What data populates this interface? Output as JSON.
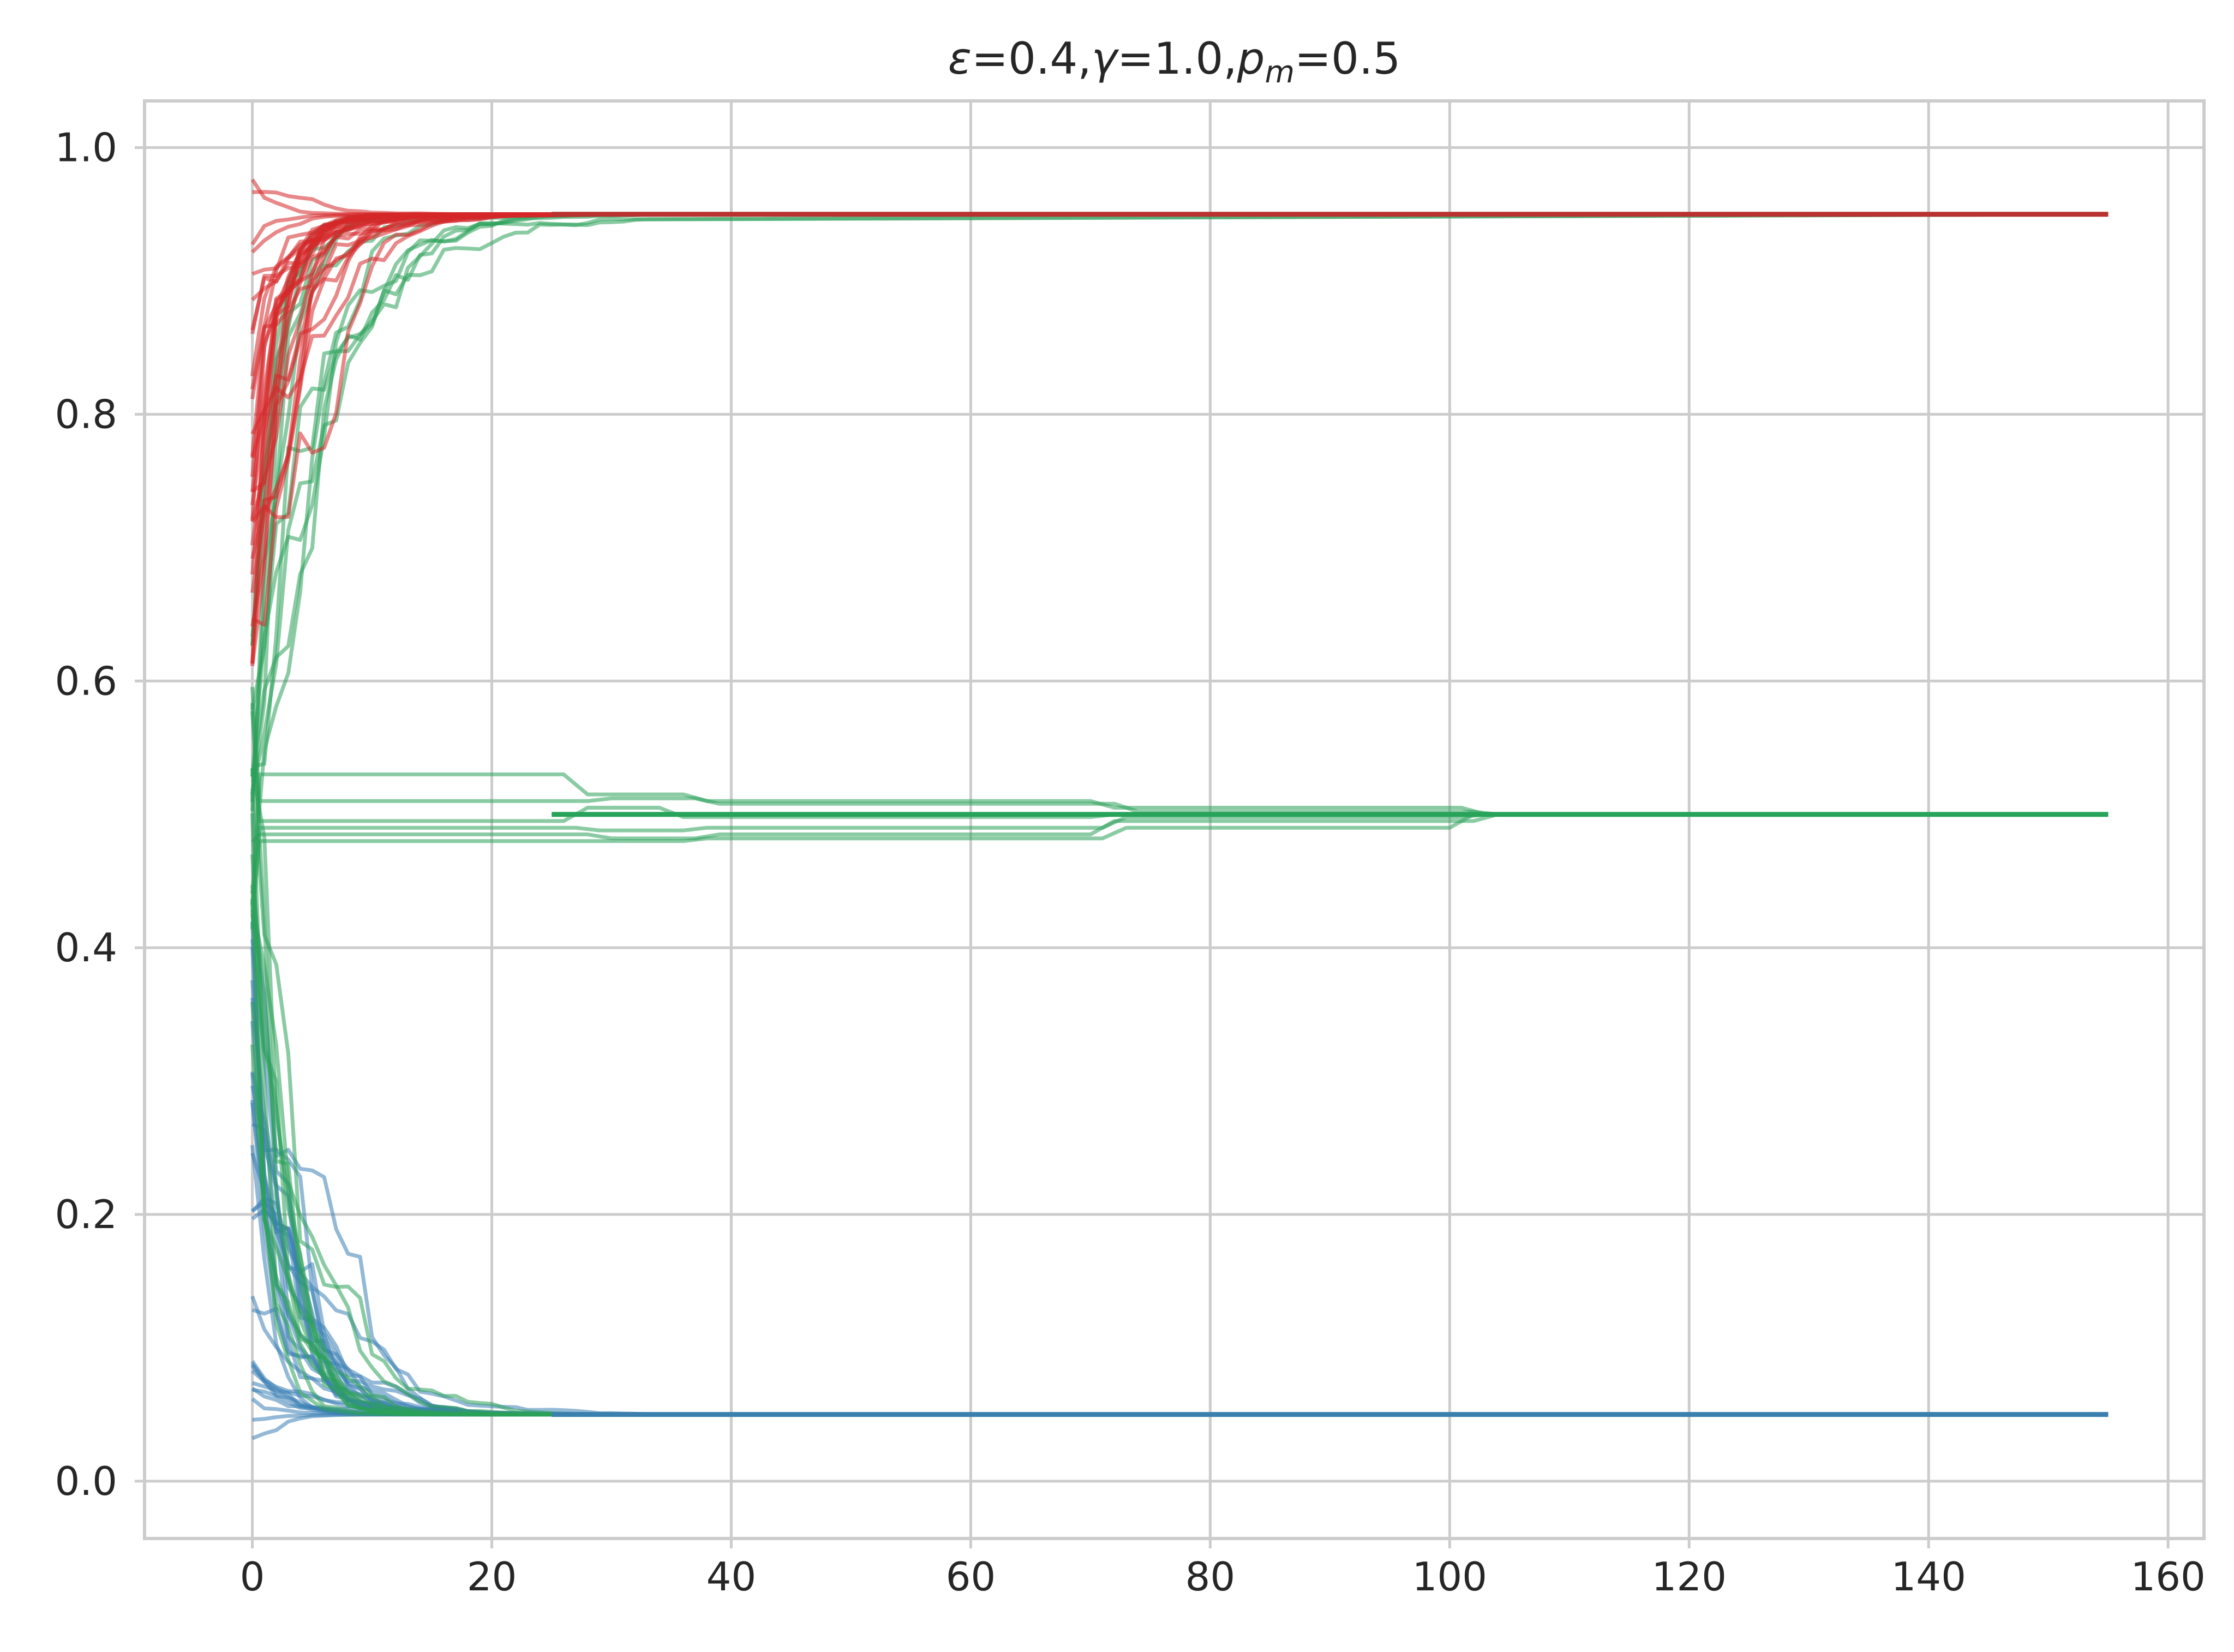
{
  "chart_data": {
    "type": "line",
    "title": "ε=0.4,γ=1.0,p_m=0.5",
    "title_parts": {
      "eps": "ε",
      "eps_val": "=0.4,",
      "gamma": "γ",
      "gamma_val": "=1.0,",
      "p": "p",
      "p_sub": "m",
      "p_val": "=0.5"
    },
    "xlabel": "",
    "ylabel": "",
    "xlim": [
      -9,
      163
    ],
    "ylim": [
      -0.043,
      1.035
    ],
    "x_ticks": [
      0,
      20,
      40,
      60,
      80,
      100,
      120,
      140,
      160
    ],
    "y_ticks": [
      0.0,
      0.2,
      0.4,
      0.6,
      0.8,
      1.0
    ],
    "x_tick_labels": [
      "0",
      "20",
      "40",
      "60",
      "80",
      "100",
      "120",
      "140",
      "160"
    ],
    "y_tick_labels": [
      "0.0",
      "0.2",
      "0.4",
      "0.6",
      "0.8",
      "1.0"
    ],
    "grid": true,
    "legend": "none",
    "colors": {
      "red": "#d62728",
      "green": "#2ca05a",
      "blue": "#3b7fb5",
      "grid": "#cccccc"
    },
    "x_end": 155,
    "series": [
      {
        "group": "red",
        "color": "#d62728",
        "count": 30,
        "final_value": 0.95,
        "start_range": [
          0.6,
          0.985
        ],
        "converged_by": 25
      },
      {
        "group": "blue",
        "color": "#3b7fb5",
        "count": 30,
        "final_value": 0.05,
        "start_range": [
          0.005,
          0.45
        ],
        "converged_by": 25
      },
      {
        "group": "green-upper",
        "color": "#2ca05a",
        "count": 12,
        "final_value": 0.95,
        "start_range": [
          0.4,
          0.65
        ],
        "converged_by": 25
      },
      {
        "group": "green-lower",
        "color": "#2ca05a",
        "count": 12,
        "final_value": 0.05,
        "start_range": [
          0.3,
          0.6
        ],
        "converged_by": 25
      },
      {
        "group": "green-middle",
        "color": "#2ca05a",
        "count": 6,
        "final_value": 0.5,
        "plateaus": [
          {
            "values": [
              0.53,
              0.515,
              0.51,
              0.505,
              0.5
            ],
            "switch_x": [
              26,
              36,
              70,
              101
            ]
          },
          {
            "values": [
              0.51,
              0.512,
              0.508,
              0.502,
              0.5
            ],
            "switch_x": [
              28,
              37,
              72,
              102
            ]
          },
          {
            "values": [
              0.495,
              0.505,
              0.498,
              0.5,
              0.5
            ],
            "switch_x": [
              26,
              34,
              70,
              100
            ]
          },
          {
            "values": [
              0.49,
              0.488,
              0.49,
              0.498,
              0.5
            ],
            "switch_x": [
              27,
              36,
              71,
              101
            ]
          },
          {
            "values": [
              0.485,
              0.482,
              0.485,
              0.495,
              0.5
            ],
            "switch_x": [
              28,
              37,
              70,
              102
            ]
          },
          {
            "values": [
              0.48,
              0.48,
              0.482,
              0.49,
              0.5
            ],
            "switch_x": [
              26,
              36,
              71,
              100
            ]
          }
        ]
      }
    ]
  }
}
